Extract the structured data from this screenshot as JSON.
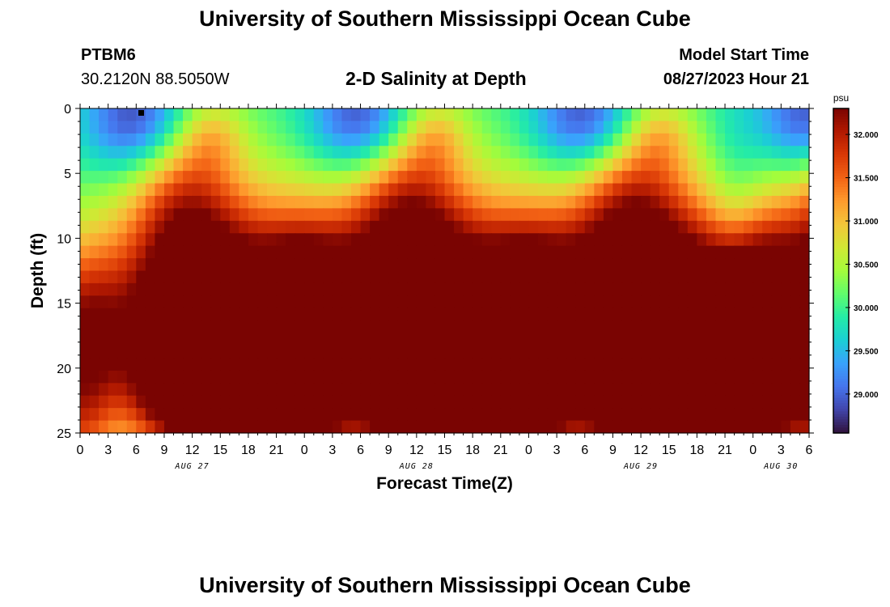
{
  "header": {
    "title": "University of Southern Mississippi Ocean Cube",
    "station_id": "PTBM6",
    "coordinates": "30.2120N  88.5050W",
    "plot_title": "2-D Salinity at Depth",
    "model_start_label": "Model Start Time",
    "model_start_value": "08/27/2023 Hour 21"
  },
  "footer": {
    "title": "University of Southern Mississippi Ocean Cube"
  },
  "chart_data": {
    "type": "heatmap",
    "title": "2-D Salinity at Depth",
    "xlabel": "Forecast Time(Z)",
    "ylabel": "Depth (ft)",
    "x_range_hours": [
      0,
      78
    ],
    "y_range": [
      0,
      25
    ],
    "y_ticks": [
      "0",
      "5",
      "10",
      "15",
      "20",
      "25"
    ],
    "x_tick_labels": [
      "0",
      "3",
      "6",
      "9",
      "12",
      "15",
      "18",
      "21",
      "0",
      "3",
      "6",
      "9",
      "12",
      "15",
      "18",
      "21",
      "0",
      "3",
      "6",
      "9",
      "12",
      "15",
      "18",
      "21",
      "0",
      "3",
      "6"
    ],
    "date_labels": [
      {
        "label": "AUG 27",
        "hour": 12
      },
      {
        "label": "AUG 28",
        "hour": 36
      },
      {
        "label": "AUG 29",
        "hour": 60
      },
      {
        "label": "AUG 30",
        "hour": 75
      }
    ],
    "colorbar": {
      "unit": "psu",
      "min": 28.55,
      "max": 32.3,
      "ticks": [
        "32.000",
        "31.500",
        "31.000",
        "30.500",
        "30.000",
        "29.500",
        "29.000"
      ],
      "tick_values": [
        32.0,
        31.5,
        31.0,
        30.5,
        30.0,
        29.5,
        29.0
      ],
      "colors": [
        "#30123b",
        "#4145ab",
        "#4675ed",
        "#39a2fc",
        "#1bcfd4",
        "#24eca6",
        "#61fc6c",
        "#a4fc3b",
        "#d1e834",
        "#f3c63a",
        "#fe9b2d",
        "#f36315",
        "#d93806",
        "#b11901",
        "#7a0402"
      ]
    },
    "base": 30.0,
    "bumps": [
      {
        "t": 0,
        "d": 18,
        "st": 3.6,
        "sd": 5.5,
        "a": 2.1
      },
      {
        "t": 0,
        "d": 25,
        "st": 2.0,
        "sd": 3.0,
        "a": 0.5
      },
      {
        "t": 16,
        "d": 21,
        "st": 4.5,
        "sd": 3.2,
        "a": 1.7
      },
      {
        "t": 11,
        "d": 16,
        "st": 5.0,
        "sd": 7.0,
        "a": 2.3
      },
      {
        "t": 11,
        "d": 6,
        "st": 4.0,
        "sd": 3.5,
        "a": 0.7
      },
      {
        "t": 20,
        "d": 17,
        "st": 8.5,
        "sd": 6.5,
        "a": 2.5
      },
      {
        "t": 14,
        "d": 2,
        "st": 2.5,
        "sd": 2.0,
        "a": 0.6
      },
      {
        "t": 9,
        "d": 22,
        "st": 2.5,
        "sd": 2.5,
        "a": 0.5
      },
      {
        "t": 6,
        "d": 1,
        "st": 4.0,
        "sd": 3.0,
        "a": -1.3
      },
      {
        "t": 70,
        "d": 8,
        "st": 2.2,
        "sd": 6.0,
        "a": -0.45
      }
    ]
  }
}
